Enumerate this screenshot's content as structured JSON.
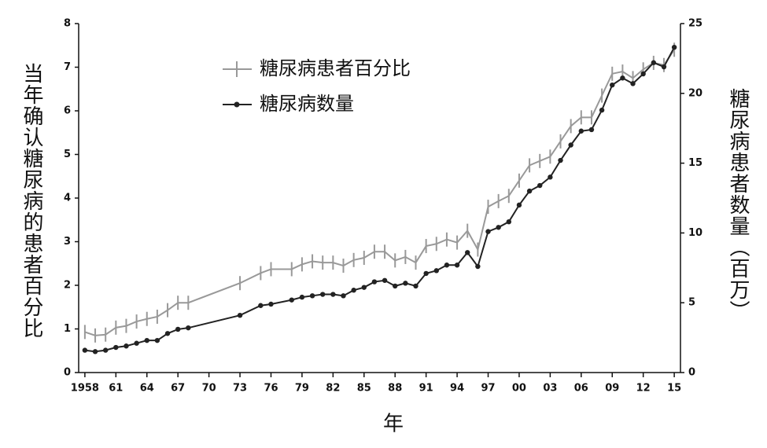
{
  "chart_data": {
    "type": "line",
    "ylabel": "当年确认糖尿病的患者百分比",
    "y2label": "糖尿病患者数量（百万）",
    "xlabel": "年",
    "x": [
      1958,
      1959,
      1960,
      1961,
      1962,
      1963,
      1964,
      1965,
      1966,
      1967,
      1968,
      1973,
      1975,
      1976,
      1978,
      1979,
      1980,
      1981,
      1982,
      1983,
      1984,
      1985,
      1986,
      1987,
      1988,
      1989,
      1990,
      1991,
      1992,
      1993,
      1994,
      1995,
      1996,
      1997,
      1998,
      1999,
      2000,
      2001,
      2002,
      2003,
      2004,
      2005,
      2006,
      2007,
      2008,
      2009,
      2010,
      2011,
      2012,
      2013,
      2014,
      2015
    ],
    "series": [
      {
        "name": "糖尿病患者百分比",
        "color": "#999999",
        "axis": "y",
        "values": [
          0.93,
          0.85,
          0.87,
          1.03,
          1.07,
          1.17,
          1.23,
          1.28,
          1.43,
          1.6,
          1.6,
          2.05,
          2.28,
          2.37,
          2.37,
          2.48,
          2.55,
          2.52,
          2.52,
          2.45,
          2.58,
          2.63,
          2.77,
          2.77,
          2.57,
          2.65,
          2.52,
          2.9,
          2.95,
          3.05,
          2.98,
          3.25,
          2.82,
          3.8,
          3.93,
          4.05,
          4.4,
          4.75,
          4.85,
          4.95,
          5.3,
          5.65,
          5.85,
          5.85,
          6.35,
          6.85,
          6.9,
          6.75,
          6.95,
          7.1,
          7.05,
          7.4
        ]
      },
      {
        "name": "糖尿病数量",
        "color": "#222222",
        "axis": "y2",
        "values": [
          1.6,
          1.5,
          1.6,
          1.8,
          1.9,
          2.1,
          2.3,
          2.3,
          2.8,
          3.1,
          3.2,
          4.1,
          4.8,
          4.9,
          5.2,
          5.4,
          5.5,
          5.6,
          5.6,
          5.5,
          5.9,
          6.1,
          6.5,
          6.6,
          6.2,
          6.4,
          6.2,
          7.1,
          7.3,
          7.7,
          7.7,
          8.6,
          7.6,
          10.1,
          10.4,
          10.8,
          12.0,
          13.0,
          13.4,
          14.0,
          15.2,
          16.3,
          17.3,
          17.4,
          18.8,
          20.6,
          21.1,
          20.7,
          21.4,
          22.2,
          21.9,
          23.3
        ]
      }
    ],
    "xlim": [
      1957.4,
      2015.6
    ],
    "xticks": [
      1958,
      {
        "value": 1961,
        "label": "61"
      },
      {
        "value": 1964,
        "label": "64"
      },
      {
        "value": 1967,
        "label": "67"
      },
      {
        "value": 1970,
        "label": "70"
      },
      {
        "value": 1973,
        "label": "73"
      },
      {
        "value": 1976,
        "label": "76"
      },
      {
        "value": 1979,
        "label": "79"
      },
      {
        "value": 1982,
        "label": "82"
      },
      {
        "value": 1985,
        "label": "85"
      },
      {
        "value": 1988,
        "label": "88"
      },
      {
        "value": 1991,
        "label": "91"
      },
      {
        "value": 1994,
        "label": "94"
      },
      {
        "value": 1997,
        "label": "97"
      },
      {
        "value": 2000,
        "label": "00"
      },
      {
        "value": 2003,
        "label": "03"
      },
      {
        "value": 2006,
        "label": "06"
      },
      {
        "value": 2009,
        "label": "09"
      },
      {
        "value": 2012,
        "label": "12"
      },
      {
        "value": 2015,
        "label": "15"
      }
    ],
    "ylim": [
      0,
      8
    ],
    "yticks": [
      0,
      1,
      2,
      3,
      4,
      5,
      6,
      7,
      8
    ],
    "y2lim": [
      0,
      25
    ],
    "y2ticks": [
      0,
      5,
      10,
      15,
      20,
      25
    ],
    "legend": "upper left"
  }
}
